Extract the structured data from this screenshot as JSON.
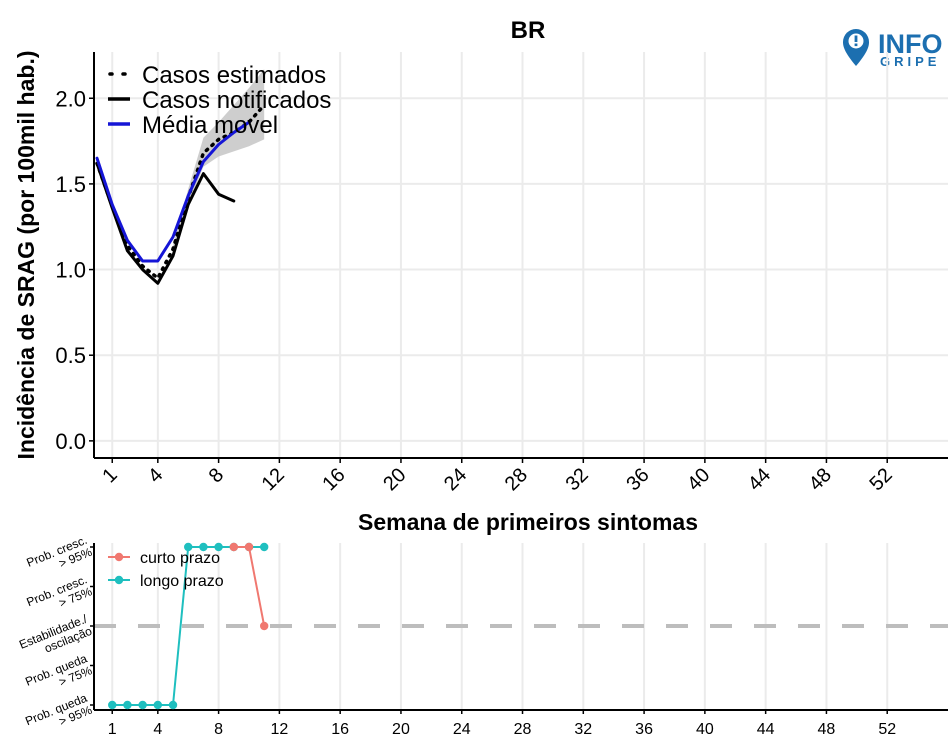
{
  "title": "BR",
  "logo": {
    "text_top": "INFO",
    "text_bottom": "GRIPE",
    "pin_color": "#1c6fb0"
  },
  "chart_data": [
    {
      "type": "line",
      "title": "BR",
      "xlabel": "Semana de primeiros sintomas",
      "ylabel": "Incidência de SRAG (por 100mil hab.)",
      "xlim": [
        -0.2,
        56
      ],
      "ylim": [
        -0.1,
        2.27
      ],
      "xticks": [
        1,
        4,
        8,
        12,
        16,
        20,
        24,
        28,
        32,
        36,
        40,
        44,
        48,
        52
      ],
      "yticks": [
        0.0,
        0.5,
        1.0,
        1.5,
        2.0
      ],
      "ytick_labels": [
        "0.0",
        "0.5",
        "1.0",
        "1.5",
        "2.0"
      ],
      "grid": true,
      "legend_position": "top-left",
      "series": [
        {
          "name": "Casos estimados",
          "style": "dotted",
          "color": "#000000",
          "x": [
            0,
            1,
            2,
            3,
            4,
            5,
            6,
            7,
            8,
            9,
            10,
            11
          ],
          "y": [
            1.62,
            1.37,
            1.14,
            1.02,
            0.95,
            1.12,
            1.42,
            1.68,
            1.76,
            1.8,
            1.86,
            1.96
          ]
        },
        {
          "name": "Casos notificados",
          "style": "solid",
          "color": "#000000",
          "x": [
            0,
            1,
            2,
            3,
            4,
            5,
            6,
            7,
            8,
            9
          ],
          "y": [
            1.62,
            1.36,
            1.11,
            1.0,
            0.92,
            1.08,
            1.38,
            1.56,
            1.44,
            1.4
          ]
        },
        {
          "name": "Média movel",
          "style": "solid",
          "color": "#1515d6",
          "x": [
            0,
            1,
            2,
            3,
            4,
            5,
            6,
            7,
            8,
            9,
            10
          ],
          "y": [
            1.65,
            1.38,
            1.17,
            1.05,
            1.05,
            1.19,
            1.43,
            1.63,
            1.73,
            1.8,
            1.86
          ]
        }
      ],
      "confidence_band": {
        "x": [
          5,
          6,
          7,
          8,
          9,
          10,
          11
        ],
        "lower": [
          1.1,
          1.38,
          1.6,
          1.66,
          1.69,
          1.72,
          1.76
        ],
        "upper": [
          1.14,
          1.47,
          1.77,
          1.86,
          1.96,
          2.06,
          2.17
        ],
        "color": "#bdbdbd"
      }
    },
    {
      "type": "line",
      "xlim": [
        -0.2,
        56
      ],
      "xticks": [
        1,
        4,
        8,
        12,
        16,
        20,
        24,
        28,
        32,
        36,
        40,
        44,
        48,
        52
      ],
      "y_categories": [
        "Prob. queda > 95%",
        "Prob. queda > 75%",
        "Estabilidade./ oscilação",
        "Prob. cresc. > 75%",
        "Prob. cresc. > 95%"
      ],
      "y_category_lines": [
        [
          "Prob. queda",
          "> 95%"
        ],
        [
          "Prob. queda",
          "> 75%"
        ],
        [
          "Estabilidade./",
          "oscilação"
        ],
        [
          "Prob. cresc.",
          "> 75%"
        ],
        [
          "Prob. cresc.",
          "> 95%"
        ]
      ],
      "reference_line": {
        "level": 0,
        "style": "dashed",
        "color": "#bdbdbd"
      },
      "legend_position": "top-left",
      "series": [
        {
          "name": "curto prazo",
          "color": "#f07870",
          "x": [
            9,
            10,
            11
          ],
          "y": [
            2,
            2,
            0
          ]
        },
        {
          "name": "longo prazo",
          "color": "#1fbfbf",
          "x": [
            1,
            2,
            3,
            4,
            5,
            6,
            7,
            8,
            9,
            10,
            11
          ],
          "y": [
            -2,
            -2,
            -2,
            -2,
            -2,
            2,
            2,
            2,
            2,
            2,
            2
          ]
        }
      ]
    }
  ]
}
